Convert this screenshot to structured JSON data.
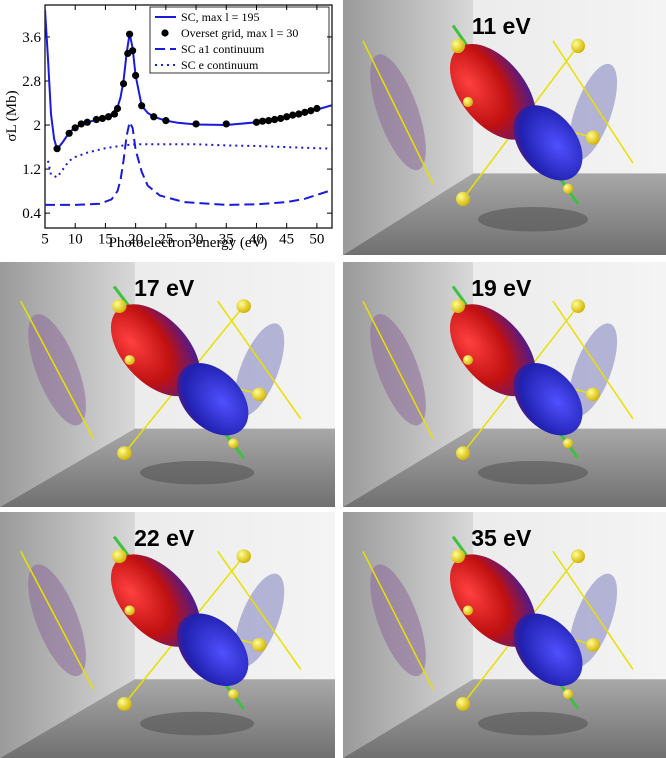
{
  "chart_data": {
    "type": "line",
    "xlabel": "Photoelectron energy (eV)",
    "ylabel": "σL (Mb)",
    "xlim": [
      5,
      52.5
    ],
    "xticks": [
      5,
      10,
      15,
      20,
      25,
      30,
      35,
      40,
      45,
      50
    ],
    "ylim": [
      0.13,
      4.18
    ],
    "yticks": [
      0.4,
      1.2,
      2.0,
      2.8,
      3.6
    ],
    "legend": "upper right",
    "series": [
      {
        "name": "SC, max l = 195",
        "color": "#1a1adc",
        "style": "solid",
        "x": [
          5,
          5.5,
          6,
          6.5,
          7,
          8,
          9,
          10,
          12,
          14,
          15,
          16,
          17,
          17.5,
          18,
          18.5,
          19,
          19.5,
          20,
          21,
          22,
          23,
          25,
          27,
          30,
          35,
          40,
          45,
          50,
          52.5
        ],
        "values": [
          4.1,
          3.2,
          2.2,
          1.75,
          1.56,
          1.7,
          1.86,
          1.96,
          2.05,
          2.11,
          2.14,
          2.2,
          2.32,
          2.5,
          2.8,
          3.3,
          3.66,
          3.4,
          2.9,
          2.35,
          2.22,
          2.15,
          2.08,
          2.04,
          2.01,
          2.0,
          2.05,
          2.15,
          2.28,
          2.36
        ]
      },
      {
        "name": "Overset grid, max l = 30",
        "color": "#000000",
        "style": "markers",
        "x": [
          7,
          9,
          10,
          11,
          12,
          13.5,
          14.5,
          15.5,
          16.5,
          17,
          18,
          18.7,
          19,
          19.5,
          20,
          21,
          23,
          25,
          30,
          35,
          40,
          41,
          42,
          43,
          44,
          45,
          46,
          47,
          48,
          49,
          50
        ],
        "values": [
          1.57,
          1.85,
          1.95,
          2.02,
          2.05,
          2.1,
          2.12,
          2.15,
          2.2,
          2.3,
          2.75,
          3.3,
          3.65,
          3.35,
          2.9,
          2.35,
          2.15,
          2.08,
          2.02,
          2.02,
          2.05,
          2.07,
          2.08,
          2.1,
          2.12,
          2.15,
          2.18,
          2.2,
          2.23,
          2.26,
          2.3
        ]
      },
      {
        "name": "SC a1 continuum",
        "color": "#1a1adc",
        "style": "dashed",
        "x": [
          5,
          10,
          14,
          16,
          17,
          17.5,
          18,
          18.5,
          19,
          19.5,
          20,
          21,
          22,
          24,
          28,
          35,
          40,
          45,
          48,
          52.5
        ],
        "values": [
          0.55,
          0.55,
          0.57,
          0.65,
          0.8,
          1.0,
          1.35,
          1.8,
          2.05,
          1.95,
          1.55,
          1.15,
          0.9,
          0.72,
          0.6,
          0.55,
          0.56,
          0.6,
          0.66,
          0.82
        ]
      },
      {
        "name": "SC e continuum",
        "color": "#1a1adc",
        "style": "dotted",
        "x": [
          5.5,
          6,
          7,
          8,
          9,
          10,
          12,
          15,
          18,
          20,
          25,
          30,
          35,
          40,
          45,
          50,
          52.5
        ],
        "values": [
          1.35,
          1.1,
          1.05,
          1.2,
          1.35,
          1.42,
          1.5,
          1.58,
          1.63,
          1.65,
          1.65,
          1.65,
          1.63,
          1.62,
          1.6,
          1.58,
          1.57
        ]
      }
    ]
  },
  "panels": [
    {
      "label": "11 eV"
    },
    {
      "label": "17 eV"
    },
    {
      "label": "19 eV"
    },
    {
      "label": "22 eV"
    },
    {
      "label": "35 eV"
    }
  ]
}
